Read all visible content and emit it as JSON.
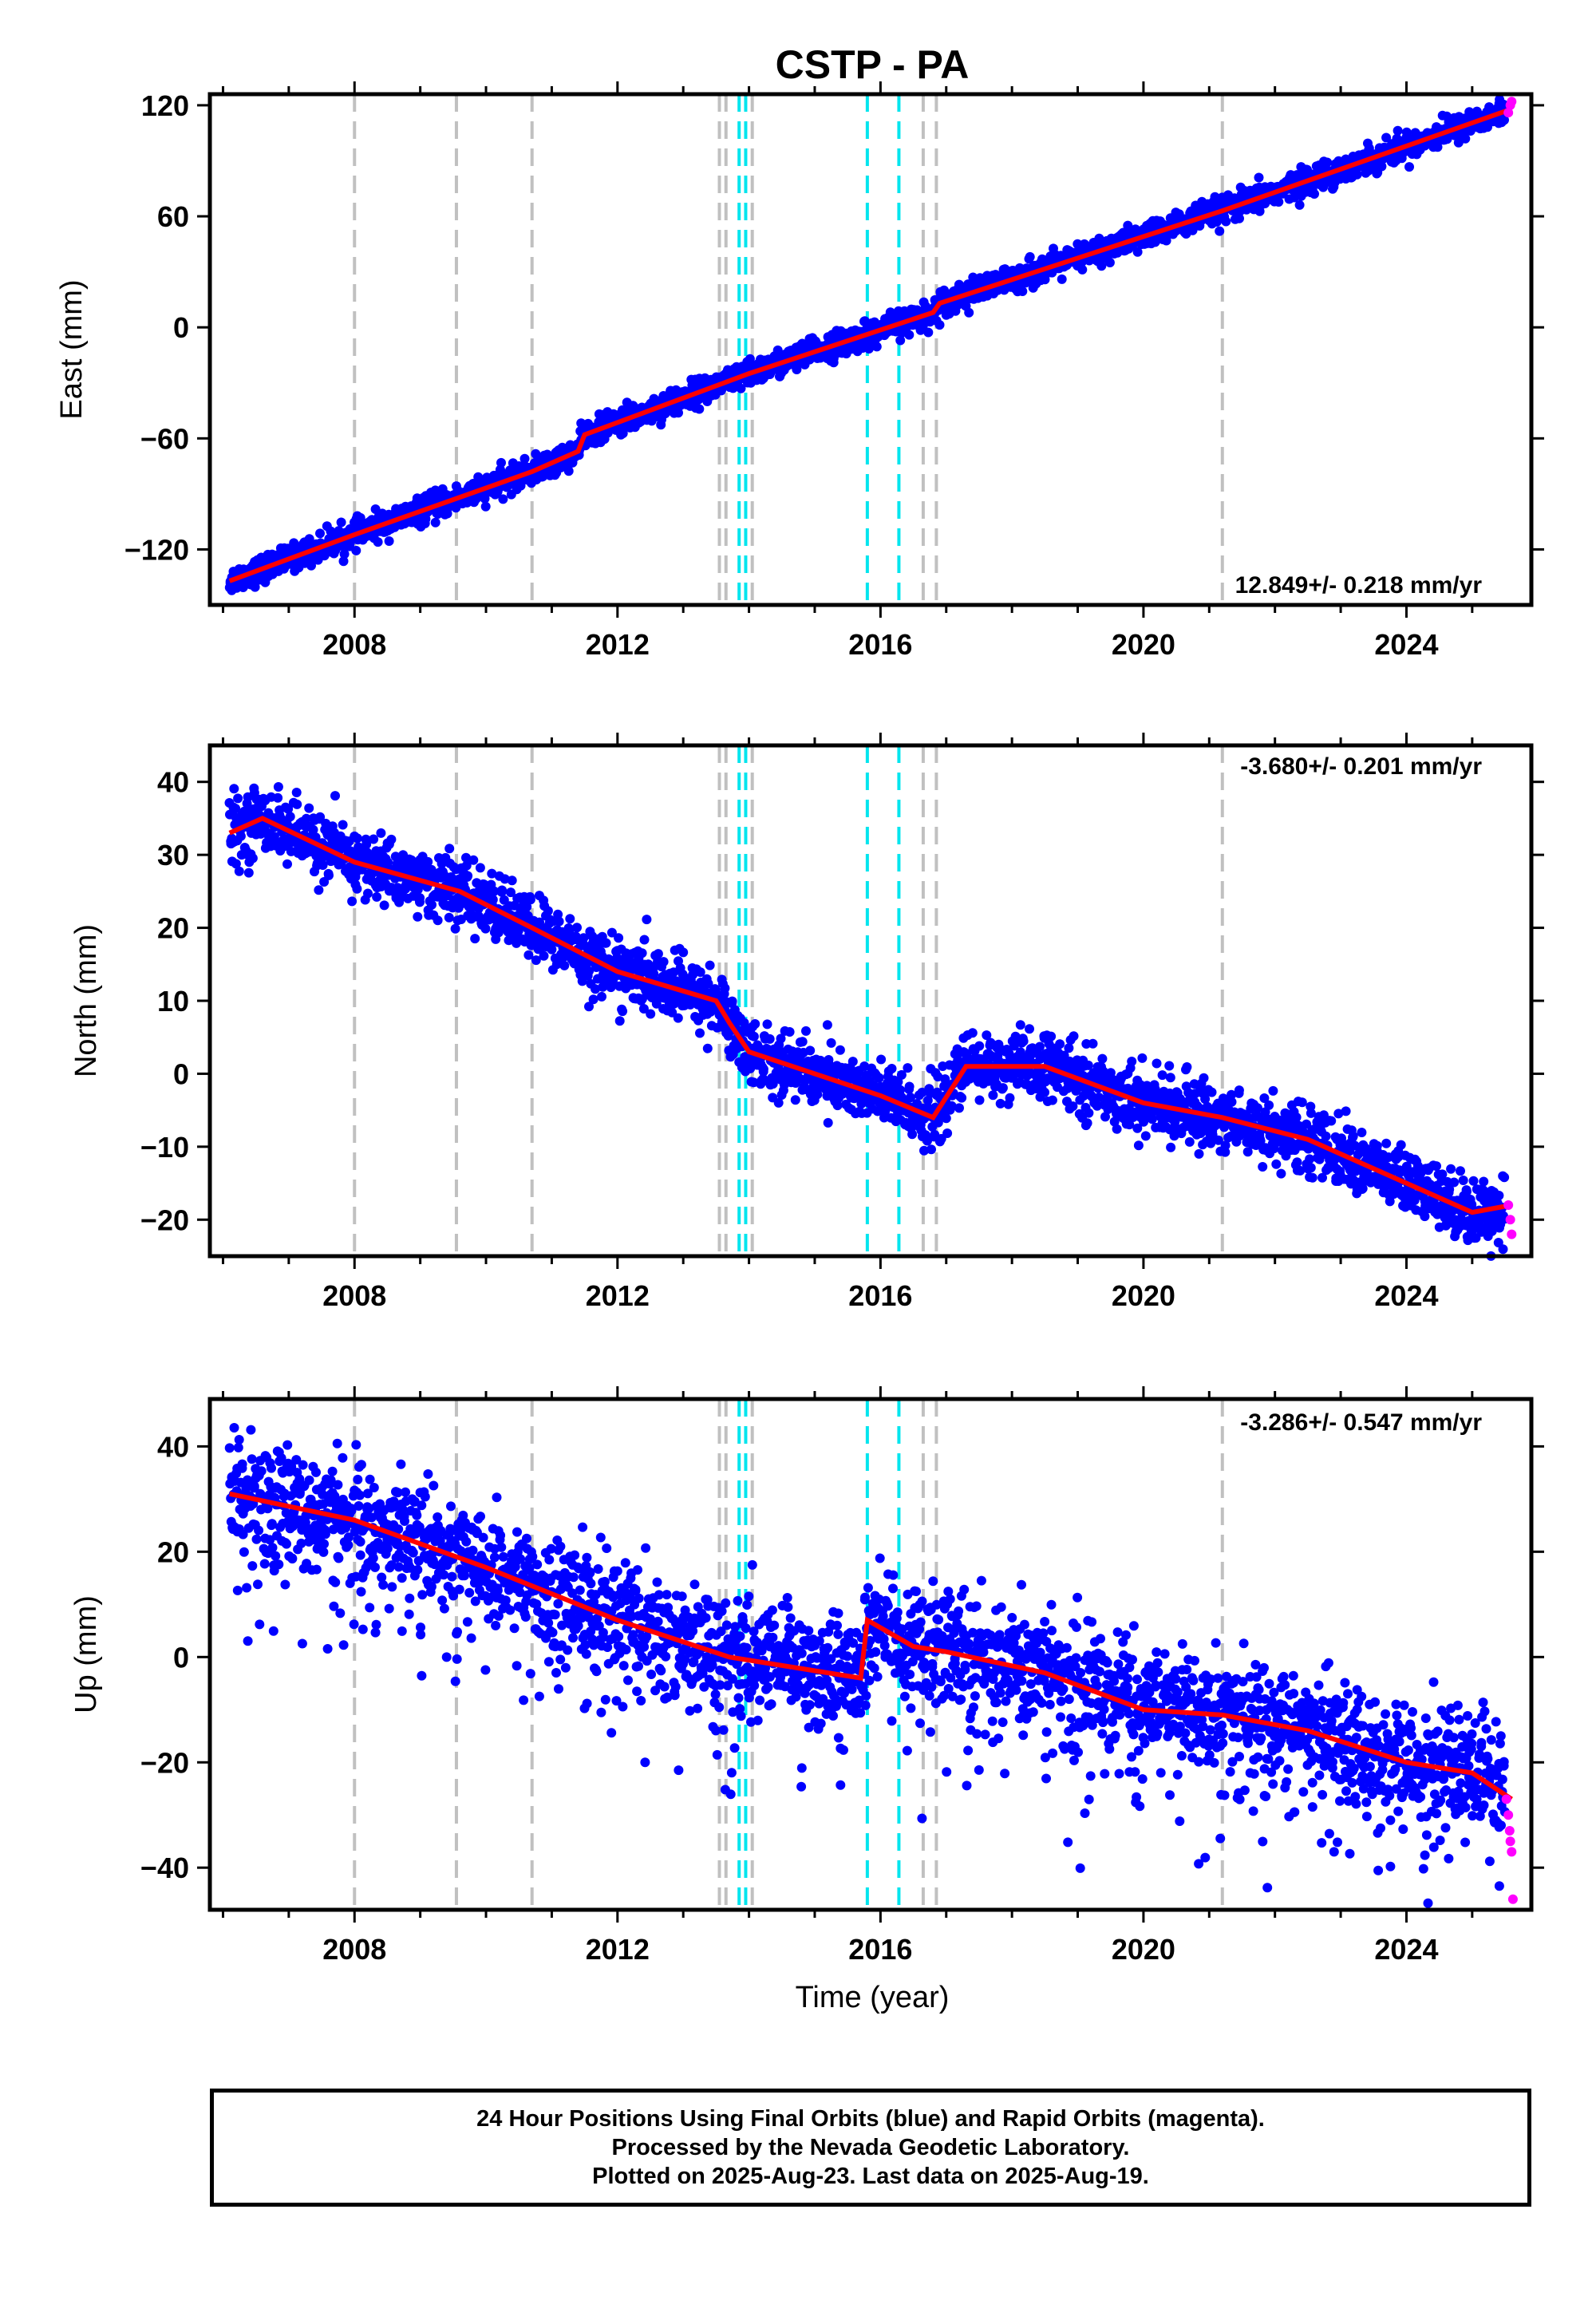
{
  "title": "CSTP - PA",
  "footer": {
    "lines": [
      "24 Hour Positions Using Final Orbits (blue) and Rapid Orbits (magenta).",
      "Processed by the Nevada Geodetic Laboratory.",
      "Plotted on 2025-Aug-23. Last data on 2025-Aug-19."
    ]
  },
  "colors": {
    "final_orbit_points": "#0000ff",
    "rapid_orbit_points": "#ff00ff",
    "model_fit_line": "#ff0000",
    "equipment_change_lines": "#c0c0c0",
    "earthquake_lines": "#00e5ee"
  },
  "chart_data": [
    {
      "type": "scatter",
      "panel": "east",
      "title": "CSTP - PA",
      "xlabel": "",
      "ylabel": "East (mm)",
      "xlim": [
        2005.8,
        2025.9
      ],
      "ylim": [
        -150,
        126
      ],
      "xticks": [
        2008,
        2012,
        2016,
        2020,
        2024
      ],
      "yticks": [
        -120,
        -60,
        0,
        60,
        120
      ],
      "rate_label": "12.849+/- 0.218 mm/yr",
      "rate_label_position": "bottom-right",
      "trend": {
        "start": [
          2006.1,
          -136
        ],
        "end": [
          2025.6,
          118
        ],
        "noise_mm": 3.5,
        "annual_amplitude_mm": 1.5
      },
      "fit_line": {
        "x": [
          2006.1,
          2008.0,
          2010.7,
          2011.4,
          2011.5,
          2014.0,
          2016.8,
          2016.9,
          2021.2,
          2025.6
        ],
        "y": [
          -137,
          -112,
          -78,
          -67,
          -58,
          -25,
          8,
          13,
          63,
          118
        ]
      },
      "rapid_points": {
        "x": [
          2025.55,
          2025.58,
          2025.6
        ],
        "y": [
          116,
          120,
          122
        ]
      },
      "vertical_lines": {
        "gray": [
          2008.0,
          2009.55,
          2010.7,
          2013.55,
          2013.65,
          2014.05,
          2016.65,
          2016.85,
          2021.2
        ],
        "cyan": [
          2013.85,
          2013.95,
          2015.8,
          2016.28
        ]
      },
      "grid": false
    },
    {
      "type": "scatter",
      "panel": "north",
      "xlabel": "",
      "ylabel": "North (mm)",
      "xlim": [
        2005.8,
        2025.9
      ],
      "ylim": [
        -25,
        45
      ],
      "xticks": [
        2008,
        2012,
        2016,
        2020,
        2024
      ],
      "yticks": [
        -20,
        -10,
        0,
        10,
        20,
        30,
        40
      ],
      "rate_label": "-3.680+/- 0.201 mm/yr",
      "rate_label_position": "top-right",
      "trend": {
        "start": [
          2006.1,
          33
        ],
        "end": [
          2025.6,
          -19
        ],
        "noise_mm": 2.2,
        "annual_amplitude_mm": 2.0
      },
      "fit_line": {
        "x": [
          2006.1,
          2006.6,
          2008.0,
          2009.6,
          2010.7,
          2012.0,
          2013.5,
          2013.7,
          2014.0,
          2016.0,
          2016.8,
          2017.3,
          2018.5,
          2020.0,
          2021.2,
          2022.5,
          2024.0,
          2025.0,
          2025.6
        ],
        "y": [
          33,
          35,
          29,
          25,
          20,
          14,
          10,
          7,
          3,
          -3,
          -6,
          1,
          1,
          -4,
          -6,
          -9,
          -15,
          -19,
          -18
        ]
      },
      "rapid_points": {
        "x": [
          2025.55,
          2025.58,
          2025.6
        ],
        "y": [
          -18,
          -20,
          -22
        ]
      },
      "vertical_lines": {
        "gray": [
          2008.0,
          2009.55,
          2010.7,
          2013.55,
          2013.65,
          2014.05,
          2016.65,
          2016.85,
          2021.2
        ],
        "cyan": [
          2013.85,
          2013.95,
          2015.8,
          2016.28
        ]
      },
      "grid": false
    },
    {
      "type": "scatter",
      "panel": "up",
      "xlabel": "Time (year)",
      "ylabel": "Up (mm)",
      "xlim": [
        2005.8,
        2025.9
      ],
      "ylim": [
        -48,
        49
      ],
      "xticks": [
        2008,
        2012,
        2016,
        2020,
        2024
      ],
      "yticks": [
        -40,
        -20,
        0,
        20,
        40
      ],
      "rate_label": "-3.286+/- 0.547 mm/yr",
      "rate_label_position": "top-right",
      "trend": {
        "start": [
          2006.1,
          31
        ],
        "end": [
          2025.6,
          -26
        ],
        "noise_mm": 5.5,
        "annual_amplitude_mm": 3.0
      },
      "fit_line": {
        "x": [
          2006.1,
          2008.0,
          2010.0,
          2012.0,
          2013.7,
          2015.7,
          2015.8,
          2016.5,
          2017.0,
          2018.5,
          2020.0,
          2021.2,
          2022.5,
          2024.0,
          2025.0,
          2025.6
        ],
        "y": [
          31,
          26,
          17,
          7,
          0,
          -4,
          7,
          2,
          1,
          -3,
          -10,
          -11,
          -14,
          -20,
          -22,
          -27
        ]
      },
      "rapid_points": {
        "x": [
          2025.52,
          2025.55,
          2025.57,
          2025.58,
          2025.6,
          2025.62
        ],
        "y": [
          -27,
          -30,
          -33,
          -35,
          -37,
          -46
        ]
      },
      "vertical_lines": {
        "gray": [
          2008.0,
          2009.55,
          2010.7,
          2013.55,
          2013.65,
          2014.05,
          2016.65,
          2016.85,
          2021.2
        ],
        "cyan": [
          2013.85,
          2013.95,
          2015.8,
          2016.28
        ]
      },
      "grid": false
    }
  ]
}
